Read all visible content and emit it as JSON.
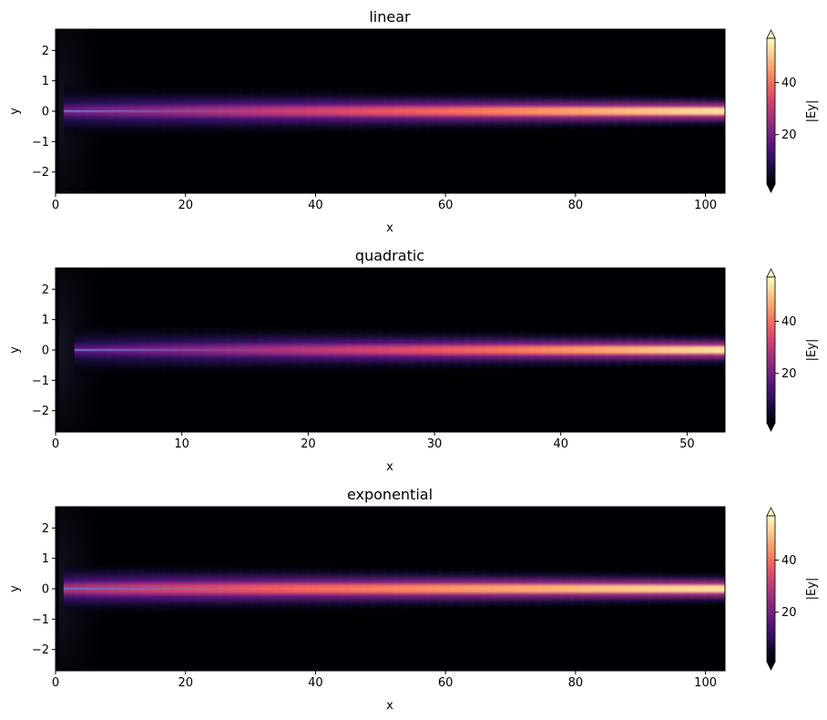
{
  "colormap": "magma",
  "colors": {
    "background": "#ffffff",
    "cmap_low": "#000004",
    "cmap_high": "#fcfdbf",
    "core_line": "#6a73c0"
  },
  "chart_data": [
    {
      "type": "heatmap",
      "title": "linear",
      "xlabel": "x",
      "ylabel": "y",
      "xlim": [
        0,
        103
      ],
      "ylim": [
        -2.7,
        2.7
      ],
      "xticks": [
        0,
        20,
        40,
        60,
        80,
        100
      ],
      "yticks": [
        -2,
        -1,
        0,
        1,
        2
      ],
      "colorbar": {
        "label": "|Ey|",
        "ticks": [
          20,
          40
        ],
        "range": [
          1,
          57
        ],
        "extend": "both"
      },
      "taper": "linear"
    },
    {
      "type": "heatmap",
      "title": "quadratic",
      "xlabel": "x",
      "ylabel": "y",
      "xlim": [
        0,
        53
      ],
      "ylim": [
        -2.7,
        2.7
      ],
      "xticks": [
        0,
        10,
        20,
        30,
        40,
        50
      ],
      "yticks": [
        -2,
        -1,
        0,
        1,
        2
      ],
      "colorbar": {
        "label": "|Ey|",
        "ticks": [
          20,
          40
        ],
        "range": [
          1,
          57
        ],
        "extend": "both"
      },
      "taper": "quadratic"
    },
    {
      "type": "heatmap",
      "title": "exponential",
      "xlabel": "x",
      "ylabel": "y",
      "xlim": [
        0,
        103
      ],
      "ylim": [
        -2.7,
        2.7
      ],
      "xticks": [
        0,
        20,
        40,
        60,
        80,
        100
      ],
      "yticks": [
        -2,
        -1,
        0,
        1,
        2
      ],
      "colorbar": {
        "label": "|Ey|",
        "ticks": [
          20,
          40
        ],
        "range": [
          1,
          57
        ],
        "extend": "both"
      },
      "taper": "exponential"
    }
  ]
}
